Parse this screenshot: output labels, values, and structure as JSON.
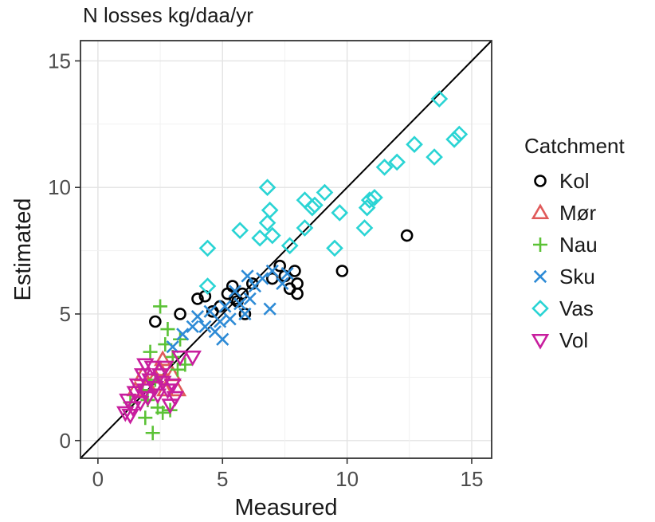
{
  "chart_data": {
    "type": "scatter",
    "title": "N losses kg/daa/yr",
    "xlabel": "Measured",
    "ylabel": "Estimated",
    "xlim": [
      -0.7,
      15.8
    ],
    "ylim": [
      -0.7,
      15.8
    ],
    "xticks": [
      0,
      5,
      10,
      15
    ],
    "yticks": [
      0,
      5,
      10,
      15
    ],
    "grid": true,
    "reference_line": "y = x",
    "legend": {
      "title": "Catchment",
      "placement": "right"
    },
    "series": [
      {
        "name": "Kol",
        "marker": "circle",
        "color": "#000000",
        "points": [
          [
            2.3,
            4.7
          ],
          [
            3.3,
            5.0
          ],
          [
            4.0,
            5.6
          ],
          [
            4.3,
            5.7
          ],
          [
            4.6,
            5.1
          ],
          [
            4.9,
            5.3
          ],
          [
            5.2,
            5.8
          ],
          [
            5.4,
            6.1
          ],
          [
            5.5,
            5.6
          ],
          [
            5.6,
            5.5
          ],
          [
            5.8,
            5.8
          ],
          [
            5.9,
            5.0
          ],
          [
            6.2,
            6.2
          ],
          [
            7.0,
            6.4
          ],
          [
            7.3,
            6.9
          ],
          [
            7.5,
            6.5
          ],
          [
            7.7,
            6.0
          ],
          [
            7.9,
            6.7
          ],
          [
            8.0,
            5.8
          ],
          [
            8.0,
            6.2
          ],
          [
            9.8,
            6.7
          ],
          [
            12.4,
            8.1
          ]
        ]
      },
      {
        "name": "Mør",
        "marker": "triangle-up",
        "color": "#e05a5a",
        "points": [
          [
            1.5,
            2.0
          ],
          [
            1.8,
            2.6
          ],
          [
            2.0,
            2.2
          ],
          [
            2.3,
            2.5
          ],
          [
            2.5,
            2.8
          ],
          [
            2.7,
            2.0
          ],
          [
            3.0,
            2.6
          ],
          [
            3.2,
            2.0
          ],
          [
            2.6,
            3.2
          ]
        ]
      },
      {
        "name": "Nau",
        "marker": "plus",
        "color": "#5bc236",
        "points": [
          [
            1.3,
            1.5
          ],
          [
            1.8,
            2.0
          ],
          [
            2.0,
            1.6
          ],
          [
            2.1,
            3.5
          ],
          [
            2.2,
            0.3
          ],
          [
            2.3,
            2.4
          ],
          [
            2.5,
            5.3
          ],
          [
            2.6,
            1.1
          ],
          [
            2.7,
            3.8
          ],
          [
            2.8,
            4.4
          ],
          [
            3.0,
            3.3
          ],
          [
            3.2,
            2.8
          ],
          [
            3.5,
            3.0
          ],
          [
            2.4,
            1.3
          ],
          [
            1.9,
            0.9
          ],
          [
            2.9,
            1.2
          ],
          [
            3.3,
            4.0
          ]
        ]
      },
      {
        "name": "Sku",
        "marker": "cross",
        "color": "#2e8bd6",
        "points": [
          [
            3.0,
            3.7
          ],
          [
            3.4,
            4.2
          ],
          [
            3.8,
            4.5
          ],
          [
            4.0,
            4.9
          ],
          [
            4.3,
            4.5
          ],
          [
            4.5,
            5.1
          ],
          [
            4.7,
            4.3
          ],
          [
            4.9,
            4.7
          ],
          [
            5.1,
            5.3
          ],
          [
            5.3,
            4.8
          ],
          [
            5.5,
            5.9
          ],
          [
            5.7,
            5.4
          ],
          [
            5.9,
            5.0
          ],
          [
            6.1,
            5.6
          ],
          [
            6.3,
            6.1
          ],
          [
            6.6,
            6.4
          ],
          [
            6.9,
            5.2
          ],
          [
            7.0,
            6.7
          ],
          [
            7.4,
            6.2
          ],
          [
            7.6,
            6.6
          ],
          [
            5.0,
            4.0
          ],
          [
            6.0,
            6.5
          ]
        ]
      },
      {
        "name": "Vas",
        "marker": "diamond",
        "color": "#2ad4d4",
        "points": [
          [
            4.4,
            7.6
          ],
          [
            4.4,
            6.1
          ],
          [
            5.7,
            8.3
          ],
          [
            6.5,
            8.0
          ],
          [
            6.8,
            8.6
          ],
          [
            6.8,
            10.0
          ],
          [
            6.9,
            9.1
          ],
          [
            7.0,
            8.1
          ],
          [
            7.7,
            7.7
          ],
          [
            8.3,
            9.5
          ],
          [
            8.3,
            8.4
          ],
          [
            8.6,
            9.2
          ],
          [
            8.7,
            9.3
          ],
          [
            9.1,
            9.8
          ],
          [
            9.5,
            7.6
          ],
          [
            9.7,
            9.0
          ],
          [
            10.7,
            8.4
          ],
          [
            10.8,
            9.2
          ],
          [
            10.9,
            9.5
          ],
          [
            11.1,
            9.6
          ],
          [
            11.5,
            10.8
          ],
          [
            12.0,
            11.0
          ],
          [
            12.7,
            11.7
          ],
          [
            13.5,
            11.2
          ],
          [
            13.7,
            13.5
          ],
          [
            14.3,
            11.9
          ],
          [
            14.5,
            12.1
          ]
        ]
      },
      {
        "name": "Vol",
        "marker": "triangle-down",
        "color": "#c81e9e",
        "points": [
          [
            1.1,
            1.1
          ],
          [
            1.2,
            1.6
          ],
          [
            1.4,
            1.3
          ],
          [
            1.5,
            1.9
          ],
          [
            1.6,
            2.2
          ],
          [
            1.7,
            1.5
          ],
          [
            1.8,
            2.6
          ],
          [
            1.9,
            2.0
          ],
          [
            2.0,
            1.7
          ],
          [
            2.1,
            2.4
          ],
          [
            2.2,
            2.9
          ],
          [
            2.3,
            2.1
          ],
          [
            2.4,
            1.8
          ],
          [
            2.5,
            2.6
          ],
          [
            2.6,
            2.3
          ],
          [
            2.7,
            2.9
          ],
          [
            2.8,
            2.0
          ],
          [
            2.9,
            1.4
          ],
          [
            3.0,
            2.2
          ],
          [
            3.1,
            1.7
          ],
          [
            1.3,
            1.0
          ],
          [
            1.9,
            3.0
          ],
          [
            3.3,
            3.3
          ],
          [
            3.8,
            3.3
          ]
        ]
      }
    ]
  }
}
